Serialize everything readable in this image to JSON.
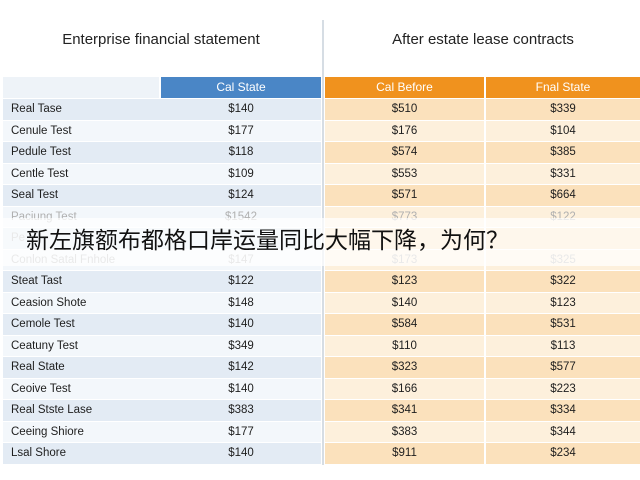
{
  "titles": {
    "left": "Enterprise financial statement",
    "right": "After estate lease contracts"
  },
  "columns": {
    "cal_state": "Cal State",
    "cal_before": "Cal Before",
    "final_state": "Fnal State"
  },
  "rows": [
    {
      "label": "Real Tase",
      "cal": "$140",
      "before": "$510",
      "final": "$339"
    },
    {
      "label": "Cenule Test",
      "cal": "$177",
      "before": "$176",
      "final": "$104"
    },
    {
      "label": "Pedule Test",
      "cal": "$118",
      "before": "$574",
      "final": "$385"
    },
    {
      "label": "Centle Test",
      "cal": "$109",
      "before": "$553",
      "final": "$331"
    },
    {
      "label": "Seal Test",
      "cal": "$124",
      "before": "$571",
      "final": "$664"
    },
    {
      "label": "Paciung Test",
      "cal": "$1542",
      "before": "$773",
      "final": "$122"
    },
    {
      "label": "Pe",
      "cal": "",
      "before": "",
      "final": ""
    },
    {
      "label": "Conlon Satal Fnhole",
      "cal": "$147",
      "before": "$173",
      "final": "$325"
    },
    {
      "label": "Steat Tast",
      "cal": "$122",
      "before": "$123",
      "final": "$322"
    },
    {
      "label": "Ceasion Shote",
      "cal": "$148",
      "before": "$140",
      "final": "$123"
    },
    {
      "label": "Cemole Test",
      "cal": "$140",
      "before": "$584",
      "final": "$531"
    },
    {
      "label": "Ceatuny Test",
      "cal": "$349",
      "before": "$110",
      "final": "$113"
    },
    {
      "label": "Real State",
      "cal": "$142",
      "before": "$323",
      "final": "$577"
    },
    {
      "label": "Ceoive Test",
      "cal": "$140",
      "before": "$166",
      "final": "$223"
    },
    {
      "label": "Real Stste Lase",
      "cal": "$383",
      "before": "$341",
      "final": "$334"
    },
    {
      "label": "Ceeing Shiore",
      "cal": "$177",
      "before": "$383",
      "final": "$344"
    },
    {
      "label": "Lsal Shore",
      "cal": "$140",
      "before": "$911",
      "final": "$234"
    }
  ],
  "faded_rows": [
    5,
    6,
    7
  ],
  "overlay_caption": "新左旗额布都格口岸运量同比大幅下降，为何？",
  "colors": {
    "header_blue": "#4a86c6",
    "header_orange": "#f0921e",
    "row_blue": "#e3ebf4",
    "row_orange": "#fbe1bc"
  }
}
